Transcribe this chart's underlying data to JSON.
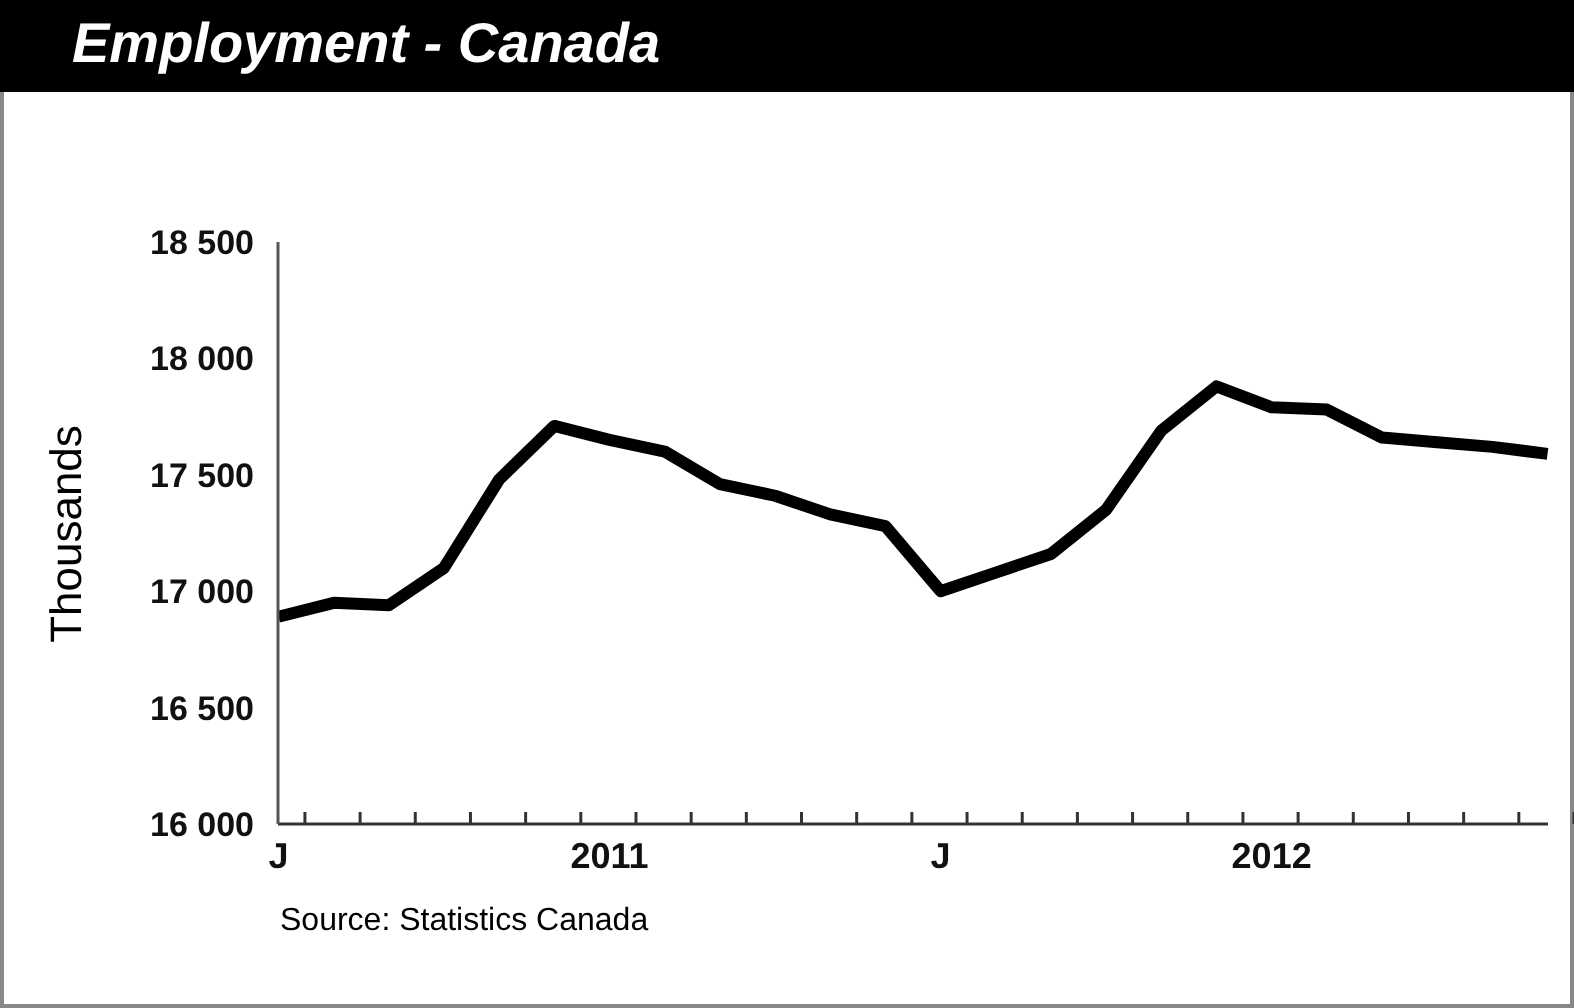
{
  "chart_data": {
    "type": "line",
    "title": "Employment - Canada",
    "ylabel": "Thousands",
    "categories": [
      "J",
      null,
      null,
      null,
      null,
      null,
      "2011",
      null,
      null,
      null,
      null,
      null,
      "J",
      null,
      null,
      null,
      null,
      null,
      "2012",
      null,
      null,
      null,
      null,
      null
    ],
    "series": [
      {
        "color": "#000000",
        "values": [
          16890,
          16950,
          16940,
          17100,
          17480,
          17710,
          17650,
          17600,
          17460,
          17410,
          17330,
          17280,
          17000,
          17080,
          17160,
          17350,
          17690,
          17880,
          17790,
          17780,
          17660,
          17640,
          17620,
          17590
        ]
      }
    ],
    "ylim": [
      16000,
      18500
    ],
    "yticks": [
      {
        "value": 16000,
        "label": "16 000"
      },
      {
        "value": 16500,
        "label": "16 500"
      },
      {
        "value": 17000,
        "label": "17 000"
      },
      {
        "value": 17500,
        "label": "17 500"
      },
      {
        "value": 18000,
        "label": "18 000"
      },
      {
        "value": 18500,
        "label": "18 500"
      }
    ],
    "grid": false,
    "legend": false,
    "marker": "none",
    "line_style": "solid",
    "annotations": [
      "Source: Statistics Canada"
    ]
  }
}
